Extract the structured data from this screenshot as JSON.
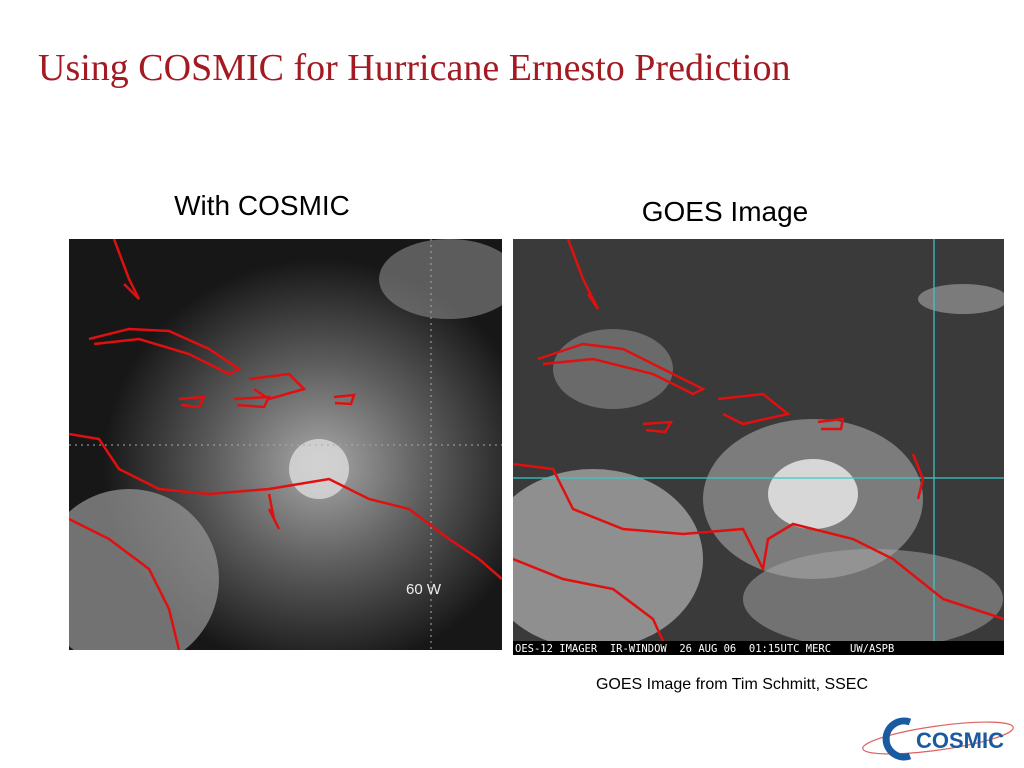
{
  "title": "Using COSMIC for Hurricane Ernesto Prediction",
  "panels": [
    {
      "heading": "With COSMIC",
      "image_label": "60 W"
    },
    {
      "heading": "GOES Image",
      "image_banner": "OES-12 IMAGER  IR-WINDOW  26 AUG 06  01:15UTC MERC   UW/ASPB"
    }
  ],
  "caption": "GOES Image from Tim Schmitt, SSEC",
  "logo": "COSMIC"
}
